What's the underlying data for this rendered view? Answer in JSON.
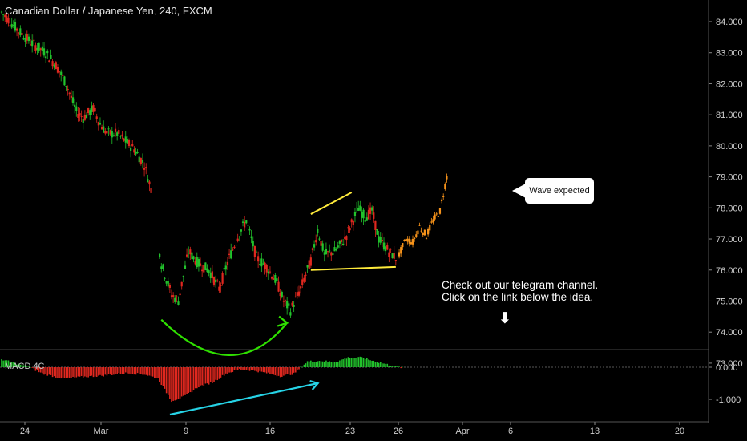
{
  "header": {
    "title": "Canadian Dollar / Japanese Yen, 240, FXCM"
  },
  "indicator": {
    "label": "MACD 4C"
  },
  "annotations": {
    "note_line1": "Check out our telegram channel.",
    "note_line2": "Click on the link below the idea.",
    "callout": "Wave expected",
    "arrow_glyph": "⬇"
  },
  "colors": {
    "background": "#000000",
    "up": "#22c32c",
    "down": "#e0281f",
    "projection": "#f7931a",
    "triangle": "#ffeb3b",
    "curve": "#2fe000",
    "divergence": "#26d3e6",
    "axis_text": "#d0d0d0"
  },
  "chart_data": [
    {
      "type": "candlestick",
      "title": "Canadian Dollar / Japanese Yen, 240, FXCM",
      "ylim": [
        72.6,
        84.4
      ],
      "y_ticks": [
        "84.000",
        "83.000",
        "82.000",
        "81.000",
        "80.000",
        "79.000",
        "78.000",
        "77.000",
        "76.000",
        "75.000",
        "74.000",
        "73.000"
      ],
      "x_ticks": [
        "24",
        "Mar",
        "9",
        "16",
        "23",
        "26",
        "Apr",
        "6",
        "13",
        "20"
      ],
      "price_path": [
        [
          0,
          84.3
        ],
        [
          5,
          83.7
        ],
        [
          9,
          83.3
        ],
        [
          13,
          83.0
        ],
        [
          16,
          82.6
        ],
        [
          19,
          82.0
        ],
        [
          22,
          81.1
        ],
        [
          24,
          80.9
        ],
        [
          27,
          81.2
        ],
        [
          29,
          80.7
        ],
        [
          31,
          80.4
        ],
        [
          34,
          80.4
        ],
        [
          36,
          80.2
        ],
        [
          39,
          79.9
        ],
        [
          42,
          79.4
        ],
        [
          44,
          78.6
        ],
        [
          47,
          76.2
        ],
        [
          50,
          75.2
        ],
        [
          52,
          75.0
        ],
        [
          55,
          76.6
        ],
        [
          58,
          76.2
        ],
        [
          61,
          76.0
        ],
        [
          64,
          75.4
        ],
        [
          67,
          76.4
        ],
        [
          70,
          77.2
        ],
        [
          72,
          77.6
        ],
        [
          75,
          76.4
        ],
        [
          78,
          76.1
        ],
        [
          81,
          75.6
        ],
        [
          83,
          75.0
        ],
        [
          85,
          74.7
        ],
        [
          88,
          75.4
        ],
        [
          91,
          76.3
        ],
        [
          93,
          77.3
        ],
        [
          95,
          76.5
        ],
        [
          98,
          76.6
        ],
        [
          101,
          77.0
        ],
        [
          103,
          77.5
        ],
        [
          105,
          78.0
        ],
        [
          107,
          77.7
        ],
        [
          109,
          77.9
        ],
        [
          111,
          77.0
        ],
        [
          114,
          76.6
        ],
        [
          116,
          76.4
        ]
      ],
      "projection_path": [
        [
          117,
          76.5
        ],
        [
          119,
          77.0
        ],
        [
          121,
          76.9
        ],
        [
          123,
          77.4
        ],
        [
          125,
          77.1
        ],
        [
          127,
          77.6
        ],
        [
          129,
          77.9
        ],
        [
          131,
          79.0
        ]
      ],
      "triangle": {
        "upper": [
          [
            91,
            77.8
          ],
          [
            103,
            78.5
          ]
        ],
        "lower": [
          [
            91,
            76.0
          ],
          [
            116,
            76.1
          ]
        ]
      },
      "curve": {
        "from": [
          47,
          74.4
        ],
        "control": [
          68,
          73.2
        ],
        "to": [
          84,
          74.3
        ]
      },
      "series": [
        {
          "values_desc": "CADJPY 4h candles"
        }
      ]
    },
    {
      "type": "bar",
      "title": "MACD 4C",
      "ylim": [
        -1.5,
        0.45
      ],
      "y_ticks": [
        "0.000",
        "-1.000"
      ],
      "histogram_path": [
        [
          0,
          0.25
        ],
        [
          4,
          0.12
        ],
        [
          8,
          0.02
        ],
        [
          12,
          -0.2
        ],
        [
          18,
          -0.35
        ],
        [
          24,
          -0.3
        ],
        [
          30,
          -0.26
        ],
        [
          36,
          -0.18
        ],
        [
          42,
          -0.22
        ],
        [
          46,
          -0.35
        ],
        [
          50,
          -1.05
        ],
        [
          54,
          -0.9
        ],
        [
          58,
          -0.6
        ],
        [
          62,
          -0.48
        ],
        [
          66,
          -0.2
        ],
        [
          70,
          -0.06
        ],
        [
          74,
          -0.1
        ],
        [
          78,
          -0.18
        ],
        [
          82,
          -0.28
        ],
        [
          86,
          -0.2
        ],
        [
          90,
          0.18
        ],
        [
          94,
          0.2
        ],
        [
          98,
          0.16
        ],
        [
          102,
          0.3
        ],
        [
          106,
          0.3
        ],
        [
          110,
          0.18
        ],
        [
          116,
          0.02
        ],
        [
          118,
          -0.02
        ]
      ],
      "divergence_line": [
        [
          50,
          -1.45
        ],
        [
          86,
          -0.45
        ]
      ]
    }
  ]
}
